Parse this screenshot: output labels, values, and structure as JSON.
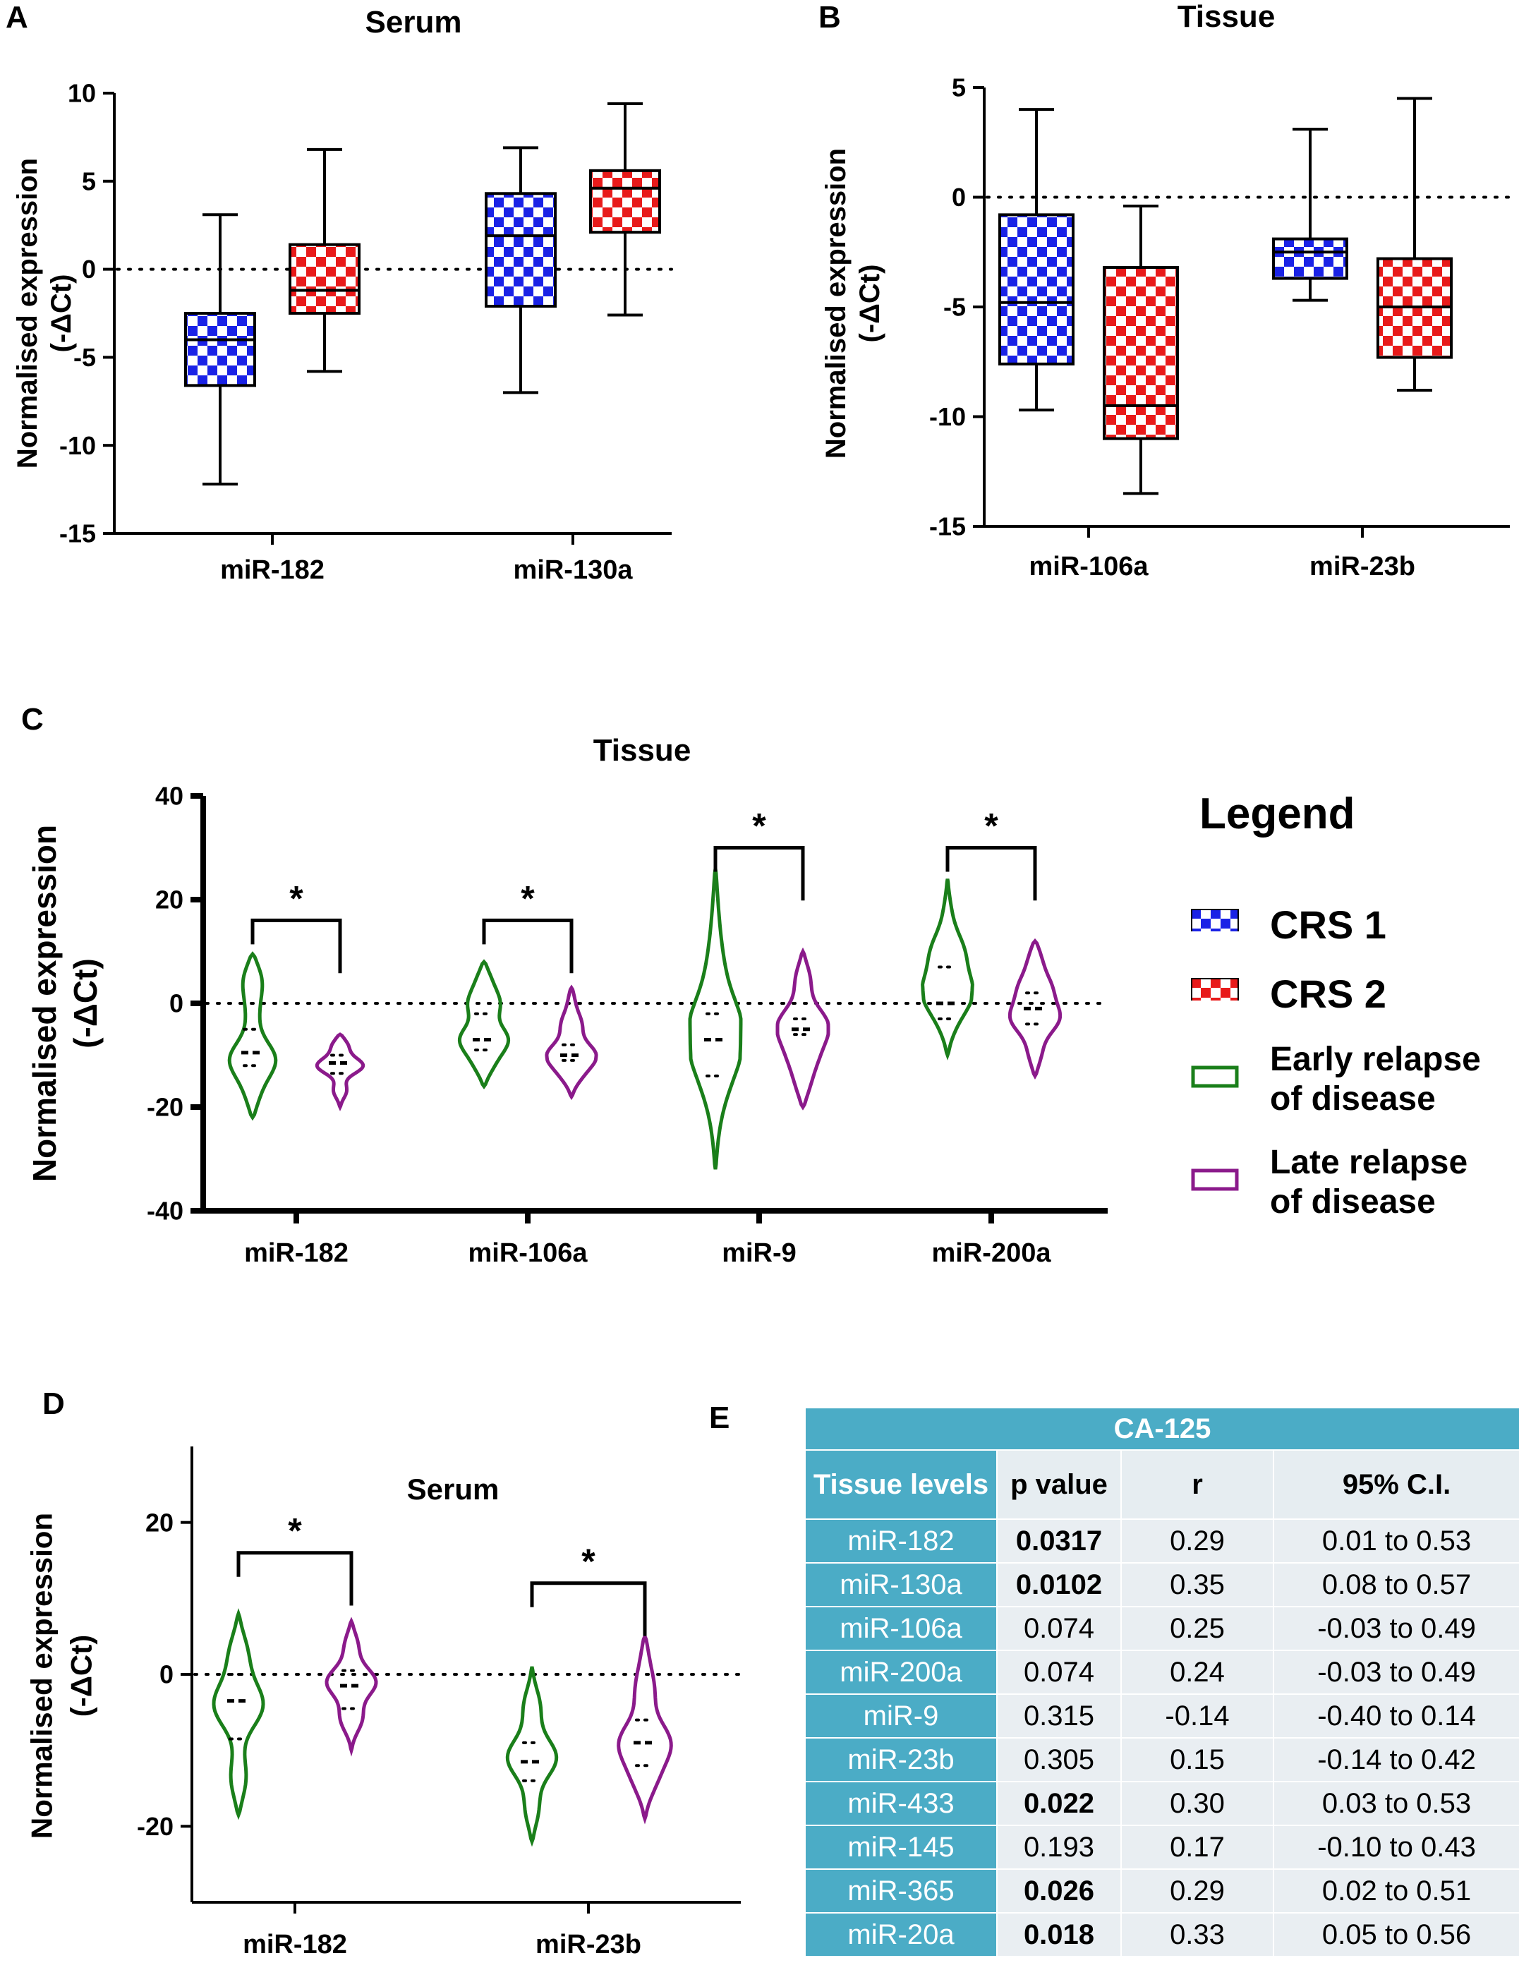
{
  "panels": {
    "A": "A",
    "B": "B",
    "C": "C",
    "D": "D",
    "E": "E"
  },
  "colors": {
    "crs1": "#1a22e6",
    "crs2": "#e81a1a",
    "early": "#1a7f1a",
    "late": "#8b1a8b",
    "table_header": "#4bacc6"
  },
  "legend": {
    "title": "Legend",
    "items": [
      {
        "label": "CRS 1",
        "swatch": "blue-checker"
      },
      {
        "label": "CRS 2",
        "swatch": "red-checker"
      },
      {
        "label_line1": "Early relapse",
        "label_line2": "of disease",
        "swatch": "green-outline"
      },
      {
        "label_line1": "Late relapse",
        "label_line2": "of disease",
        "swatch": "purple-outline"
      }
    ]
  },
  "chart_data": [
    {
      "id": "A",
      "type": "box",
      "title": "Serum",
      "ylabel_line1": "Normalised expression",
      "ylabel_line2": "(-ΔCt)",
      "ylim": [
        -15,
        10
      ],
      "yticks": [
        10,
        5,
        0,
        -5,
        -10,
        -15
      ],
      "reference_line": 0,
      "categories": [
        "miR-182",
        "miR-130a"
      ],
      "series": [
        {
          "name": "CRS 1",
          "boxes": [
            {
              "min": -12.2,
              "q1": -6.6,
              "median": -4.0,
              "q3": -2.5,
              "max": 3.1
            },
            {
              "min": -7.0,
              "q1": -2.1,
              "median": 1.9,
              "q3": 4.3,
              "max": 6.9
            }
          ]
        },
        {
          "name": "CRS 2",
          "boxes": [
            {
              "min": -5.8,
              "q1": -2.5,
              "median": -1.2,
              "q3": 1.4,
              "max": 6.8
            },
            {
              "min": -2.6,
              "q1": 2.1,
              "median": 4.6,
              "q3": 5.6,
              "max": 9.4
            }
          ]
        }
      ]
    },
    {
      "id": "B",
      "type": "box",
      "title": "Tissue",
      "ylabel_line1": "Normalised expression",
      "ylabel_line2": "(-ΔCt)",
      "ylim": [
        -15,
        5
      ],
      "yticks": [
        5,
        0,
        -5,
        -10,
        -15
      ],
      "reference_line": 0,
      "categories": [
        "miR-106a",
        "miR-23b"
      ],
      "series": [
        {
          "name": "CRS 1",
          "boxes": [
            {
              "min": -9.7,
              "q1": -7.6,
              "median": -4.8,
              "q3": -0.8,
              "max": 4.0
            },
            {
              "min": -4.7,
              "q1": -3.7,
              "median": -2.5,
              "q3": -1.9,
              "max": 3.1
            }
          ]
        },
        {
          "name": "CRS 2",
          "boxes": [
            {
              "min": -13.5,
              "q1": -11.0,
              "median": -9.5,
              "q3": -3.2,
              "max": -0.4
            },
            {
              "min": -8.8,
              "q1": -7.3,
              "median": -5.0,
              "q3": -2.8,
              "max": 4.5
            }
          ]
        }
      ]
    },
    {
      "id": "C",
      "type": "violin",
      "title": "Tissue",
      "ylabel_line1": "Normalised expression",
      "ylabel_line2": "(-ΔCt)",
      "ylim": [
        -40,
        40
      ],
      "yticks": [
        40,
        20,
        0,
        -20,
        -40
      ],
      "reference_line": 0,
      "categories": [
        "miR-182",
        "miR-106a",
        "miR-9",
        "miR-200a"
      ],
      "significance": [
        "*",
        "*",
        "*",
        "*"
      ],
      "bracket_y": [
        16,
        16,
        30,
        30
      ],
      "series": [
        {
          "name": "Early relapse of disease",
          "violins": [
            {
              "min": -22,
              "max": 9.5,
              "median": -9.5,
              "q1": -12,
              "q3": -5,
              "modes": [
                [
                  -18,
                  0.3
                ],
                [
                  -11,
                  0.9
                ],
                [
                  -2,
                  0.2
                ],
                [
                  5,
                  0.45
                ]
              ]
            },
            {
              "min": -16,
              "max": 8,
              "median": -7,
              "q1": -9,
              "q3": -2,
              "modes": [
                [
                  -12,
                  0.4
                ],
                [
                  -7,
                  0.9
                ],
                [
                  0,
                  0.6
                ],
                [
                  5,
                  0.3
                ]
              ]
            },
            {
              "min": -32,
              "max": 26,
              "median": -7,
              "q1": -14,
              "q3": -2,
              "modes": [
                [
                  -25,
                  0.1
                ],
                [
                  -14,
                  0.45
                ],
                [
                  -5,
                  0.9
                ],
                [
                  8,
                  0.25
                ],
                [
                  20,
                  0.1
                ]
              ]
            },
            {
              "min": -10,
              "max": 24,
              "median": 0,
              "q1": -3,
              "q3": 7,
              "modes": [
                [
                  -4,
                  0.3
                ],
                [
                  2,
                  0.9
                ],
                [
                  10,
                  0.6
                ],
                [
                  18,
                  0.15
                ]
              ]
            }
          ]
        },
        {
          "name": "Late relapse of disease",
          "violins": [
            {
              "min": -20,
              "max": -6,
              "median": -11.5,
              "q1": -13.5,
              "q3": -10,
              "modes": [
                [
                  -17,
                  0.3
                ],
                [
                  -12,
                  0.9
                ],
                [
                  -8,
                  0.4
                ]
              ]
            },
            {
              "min": -18,
              "max": 3,
              "median": -10,
              "q1": -11,
              "q3": -8,
              "modes": [
                [
                  -14,
                  0.4
                ],
                [
                  -10,
                  0.9
                ],
                [
                  -4,
                  0.4
                ],
                [
                  1,
                  0.15
                ]
              ]
            },
            {
              "min": -20,
              "max": 10,
              "median": -5,
              "q1": -6,
              "q3": -3,
              "modes": [
                [
                  -16,
                  0.3
                ],
                [
                  -10,
                  0.5
                ],
                [
                  -4,
                  0.9
                ],
                [
                  5,
                  0.35
                ]
              ]
            },
            {
              "min": -14,
              "max": 12,
              "median": -1,
              "q1": -4,
              "q3": 2,
              "modes": [
                [
                  -10,
                  0.3
                ],
                [
                  -3,
                  0.9
                ],
                [
                  3,
                  0.6
                ],
                [
                  9,
                  0.3
                ]
              ]
            }
          ]
        }
      ]
    },
    {
      "id": "D",
      "type": "violin",
      "title": "Serum",
      "ylabel_line1": "Normalised expression",
      "ylabel_line2": "(-ΔCt)",
      "ylim": [
        -30,
        30
      ],
      "yticks": [
        20,
        0,
        -20
      ],
      "reference_line": 0,
      "categories": [
        "miR-182",
        "miR-23b"
      ],
      "significance": [
        "*",
        "*"
      ],
      "bracket_y": [
        16,
        12
      ],
      "series": [
        {
          "name": "Early relapse of disease",
          "violins": [
            {
              "min": -18.5,
              "max": 8,
              "median": -3.5,
              "q1": -8.5,
              "q3": 0,
              "modes": [
                [
                  -14,
                  0.35
                ],
                [
                  -4,
                  0.9
                ],
                [
                  3,
                  0.4
                ]
              ]
            },
            {
              "min": -22,
              "max": 1,
              "median": -11.5,
              "q1": -14,
              "q3": -9,
              "modes": [
                [
                  -18,
                  0.3
                ],
                [
                  -11,
                  0.9
                ],
                [
                  -4,
                  0.35
                ]
              ]
            }
          ]
        },
        {
          "name": "Late relapse of disease",
          "violins": [
            {
              "min": -10,
              "max": 7,
              "median": -1.5,
              "q1": -4.5,
              "q3": 0.5,
              "modes": [
                [
                  -6,
                  0.45
                ],
                [
                  -1,
                  0.9
                ],
                [
                  4,
                  0.3
                ]
              ]
            },
            {
              "min": -19,
              "max": 5,
              "median": -9,
              "q1": -12,
              "q3": -6,
              "modes": [
                [
                  -14,
                  0.45
                ],
                [
                  -9,
                  0.9
                ],
                [
                  -2,
                  0.35
                ],
                [
                  3,
                  0.15
                ]
              ]
            }
          ]
        }
      ]
    },
    {
      "id": "E",
      "type": "table",
      "title": "CA-125",
      "columns": [
        "Tissue levels",
        "p value",
        "r",
        "95% C.I."
      ],
      "rows": [
        {
          "mirna": "miR-182",
          "p": "0.0317",
          "r": "0.29",
          "ci": "0.01 to 0.53",
          "significant": true
        },
        {
          "mirna": "miR-130a",
          "p": "0.0102",
          "r": "0.35",
          "ci": "0.08 to 0.57",
          "significant": true
        },
        {
          "mirna": "miR-106a",
          "p": "0.074",
          "r": "0.25",
          "ci": "-0.03 to 0.49",
          "significant": false
        },
        {
          "mirna": "miR-200a",
          "p": "0.074",
          "r": "0.24",
          "ci": "-0.03 to 0.49",
          "significant": false
        },
        {
          "mirna": "miR-9",
          "p": "0.315",
          "r": "-0.14",
          "ci": "-0.40 to 0.14",
          "significant": false
        },
        {
          "mirna": "miR-23b",
          "p": "0.305",
          "r": "0.15",
          "ci": "-0.14 to 0.42",
          "significant": false
        },
        {
          "mirna": "miR-433",
          "p": "0.022",
          "r": "0.30",
          "ci": "0.03 to 0.53",
          "significant": true
        },
        {
          "mirna": "miR-145",
          "p": "0.193",
          "r": "0.17",
          "ci": "-0.10 to 0.43",
          "significant": false
        },
        {
          "mirna": "miR-365",
          "p": "0.026",
          "r": "0.29",
          "ci": "0.02 to 0.51",
          "significant": true
        },
        {
          "mirna": "miR-20a",
          "p": "0.018",
          "r": "0.33",
          "ci": "0.05 to 0.56",
          "significant": true
        }
      ]
    }
  ]
}
